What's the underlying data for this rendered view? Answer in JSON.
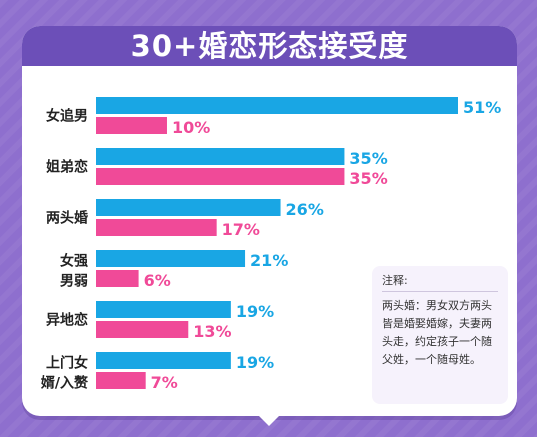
{
  "colors": {
    "background": "#8e6fce",
    "title_bar": "#6c4fb8",
    "series_blue": "#19a6e4",
    "series_pink": "#f04a98",
    "label_text": "#222222"
  },
  "chart_data": {
    "type": "bar",
    "orientation": "horizontal",
    "title": "30+婚恋形态接受度",
    "xlim": [
      0,
      51
    ],
    "categories": [
      "女追男",
      "姐弟恋",
      "两头婚",
      "女强男弱",
      "异地恋",
      "上门女婿/入赘"
    ],
    "category_lines": [
      [
        "女追男"
      ],
      [
        "姐弟恋"
      ],
      [
        "两头婚"
      ],
      [
        "女强",
        "男弱"
      ],
      [
        "异地恋"
      ],
      [
        "上门女",
        "婿/入赘"
      ]
    ],
    "series": [
      {
        "color": "#19a6e4",
        "values": [
          51,
          35,
          26,
          21,
          19,
          19
        ]
      },
      {
        "color": "#f04a98",
        "values": [
          10,
          35,
          17,
          6,
          13,
          7
        ]
      }
    ],
    "value_suffix": "%",
    "grid": false,
    "legend": "none"
  },
  "note": {
    "title": "注释:",
    "body": "两头婚：男女双方两头皆是婚娶婚嫁，夫妻两头走，约定孩子一个随父姓，一个随母姓。"
  }
}
